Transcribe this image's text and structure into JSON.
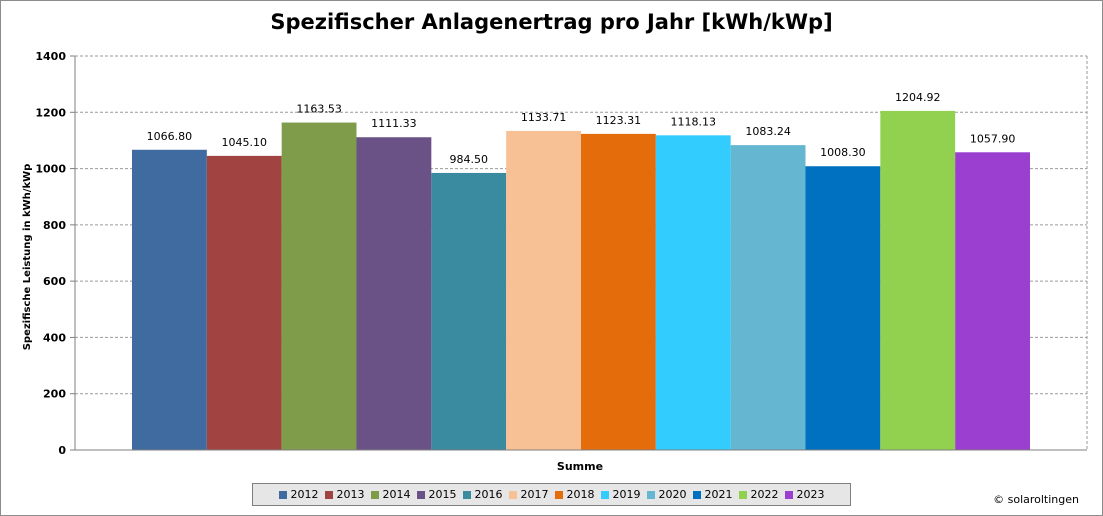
{
  "chart_data": {
    "type": "bar",
    "title": "Spezifischer Anlagenertrag pro Jahr [kWh/kWp]",
    "xlabel": "Summe",
    "ylabel": "Spezifische Leistung in kWh/kWp",
    "ylim": [
      0,
      1400
    ],
    "yticks": [
      "0",
      "200",
      "400",
      "600",
      "800",
      "1000",
      "1200",
      "1400"
    ],
    "grid": true,
    "legend_position": "bottom",
    "categories": [
      "Summe"
    ],
    "series": [
      {
        "name": "2012",
        "values": [
          1066.8
        ],
        "label": "1066.80",
        "color": "#3f6ba0"
      },
      {
        "name": "2013",
        "values": [
          1045.1
        ],
        "label": "1045.10",
        "color": "#a14341"
      },
      {
        "name": "2014",
        "values": [
          1163.53
        ],
        "label": "1163.53",
        "color": "#7f9c4a"
      },
      {
        "name": "2015",
        "values": [
          1111.33
        ],
        "label": "1111.33",
        "color": "#6a5286"
      },
      {
        "name": "2016",
        "values": [
          984.5
        ],
        "label": "984.50",
        "color": "#3a8aa0"
      },
      {
        "name": "2017",
        "values": [
          1133.71
        ],
        "label": "1133.71",
        "color": "#f8c195"
      },
      {
        "name": "2018",
        "values": [
          1123.31
        ],
        "label": "1123.31",
        "color": "#e46c0a"
      },
      {
        "name": "2019",
        "values": [
          1118.13
        ],
        "label": "1118.13",
        "color": "#33ccff"
      },
      {
        "name": "2020",
        "values": [
          1083.24
        ],
        "label": "1083.24",
        "color": "#65b6d0"
      },
      {
        "name": "2021",
        "values": [
          1008.3
        ],
        "label": "1008.30",
        "color": "#0070c0"
      },
      {
        "name": "2022",
        "values": [
          1204.92
        ],
        "label": "1204.92",
        "color": "#92d050"
      },
      {
        "name": "2023",
        "values": [
          1057.9
        ],
        "label": "1057.90",
        "color": "#9a3fd0"
      }
    ]
  },
  "credit": "© solaroltingen"
}
